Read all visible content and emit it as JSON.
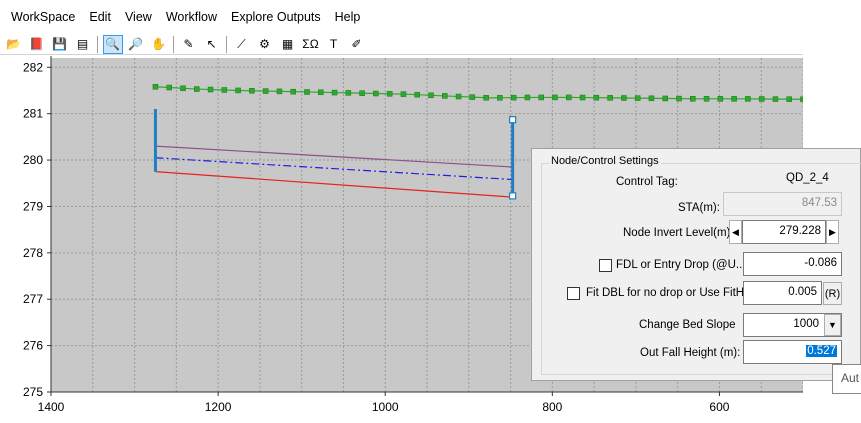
{
  "menu": [
    "WorkSpace",
    "Edit",
    "View",
    "Workflow",
    "Explore Outputs",
    "Help"
  ],
  "toolbar": {
    "group1": [
      {
        "icon": "open-folder-icon",
        "glyph": "📂"
      },
      {
        "icon": "pdf-export-icon",
        "glyph": "📕"
      },
      {
        "icon": "save-icon",
        "glyph": "💾"
      },
      {
        "icon": "properties-icon",
        "glyph": "▤"
      }
    ],
    "group2": [
      {
        "icon": "zoom-window-icon",
        "glyph": "🔍",
        "active": true
      },
      {
        "icon": "zoom-in-icon",
        "glyph": "🔎"
      },
      {
        "icon": "pan-hand-icon",
        "glyph": "✋"
      }
    ],
    "group3": [
      {
        "icon": "add-point-icon",
        "glyph": "✎"
      },
      {
        "icon": "select-arrow-icon",
        "glyph": "↖"
      }
    ],
    "group4": [
      {
        "icon": "profile-line-icon",
        "glyph": "⟋"
      },
      {
        "icon": "node-settings-icon",
        "glyph": "⚙"
      },
      {
        "icon": "grid-table-icon",
        "glyph": "▦"
      },
      {
        "icon": "sum-icon",
        "glyph": "ΣΩ"
      },
      {
        "icon": "text-tool-icon",
        "glyph": "T"
      },
      {
        "icon": "layer-pencil-icon",
        "glyph": "✐"
      }
    ]
  },
  "chart_data": {
    "type": "line",
    "title": "",
    "xlabel": "",
    "ylabel": "",
    "x_reversed": true,
    "xlim": [
      1400,
      500
    ],
    "ylim": [
      275,
      282.2
    ],
    "xticks": [
      "1400",
      "1200",
      "1000",
      "800",
      "600"
    ],
    "yticks": [
      "275",
      "276",
      "277",
      "278",
      "279",
      "280",
      "281",
      "282"
    ],
    "grid": true,
    "series": [
      {
        "color": "#2fa82f",
        "style": "line-markers",
        "x": [
          1275,
          1225,
          1175,
          1125,
          1075,
          1025,
          975,
          925,
          875,
          825,
          775,
          725,
          675,
          625,
          575,
          500
        ],
        "y": [
          281.58,
          281.53,
          281.5,
          281.48,
          281.46,
          281.44,
          281.42,
          281.38,
          281.34,
          281.35,
          281.35,
          281.34,
          281.33,
          281.32,
          281.32,
          281.31
        ]
      },
      {
        "color": "#8e4f8a",
        "style": "solid",
        "x": [
          1275,
          847.53
        ],
        "y": [
          280.3,
          279.85
        ]
      },
      {
        "color": "#1f1fe0",
        "style": "dashdot",
        "x": [
          1275,
          847.53
        ],
        "y": [
          280.05,
          279.58
        ]
      },
      {
        "color": "#e82020",
        "style": "solid",
        "x": [
          1275,
          847.53
        ],
        "y": [
          279.75,
          279.2
        ]
      }
    ],
    "nodes": [
      {
        "x": 1275,
        "y_bottom": 279.75,
        "y_top": 281.1,
        "color": "#1f7ec4"
      },
      {
        "x": 847.53,
        "y_bottom": 279.228,
        "y_top": 280.87,
        "color": "#1f7ec4",
        "selected": true
      }
    ]
  },
  "panel": {
    "title": "Node/Control Settings",
    "control_tag_label": "Control Tag:",
    "control_tag_value": "QD_2_4",
    "sta_label": "STA(m):",
    "sta_value": "847.53",
    "invert_label": "Node Invert Level(m):",
    "invert_value": "279.228",
    "fdl_label": "FDL or Entry Drop (@U...",
    "fdl_value": "-0.086",
    "fit_label": "Fit DBL for no drop or Use FitHt:",
    "fit_value": "0.005",
    "fit_button": "(R)",
    "bed_slope_label": "Change Bed Slope",
    "bed_slope_value": "1000",
    "outfall_label": "Out Fall Height (m):",
    "outfall_value": "0.527"
  },
  "tooltip": "Aut"
}
